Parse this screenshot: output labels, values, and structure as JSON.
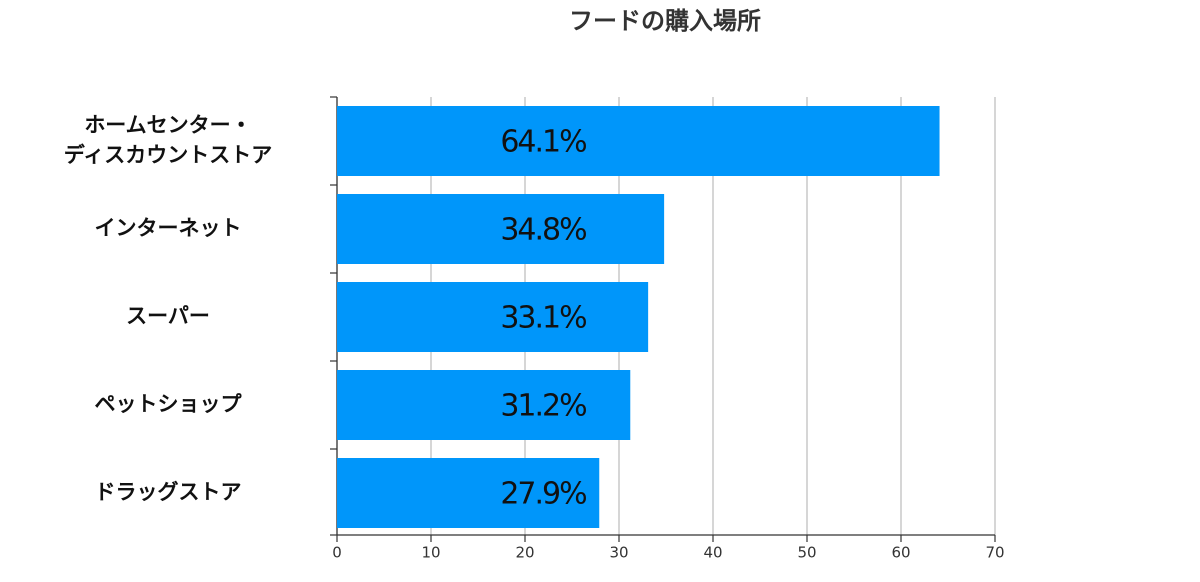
{
  "chart_data": {
    "type": "bar",
    "orientation": "horizontal",
    "title": "フードの購入場所",
    "categories": [
      "ホームセンター・\nディスカウントストア",
      "インターネット",
      "スーパー",
      "ペットショップ",
      "ドラッグストア"
    ],
    "values": [
      64.1,
      34.8,
      33.1,
      31.2,
      27.9
    ],
    "value_labels": [
      "64.1%",
      "34.8%",
      "33.1%",
      "31.2%",
      "27.9%"
    ],
    "color": "#0096fa",
    "xlim": [
      0,
      70
    ],
    "xticks": [
      0,
      10,
      20,
      30,
      40,
      50,
      60,
      70
    ],
    "grid": true
  }
}
